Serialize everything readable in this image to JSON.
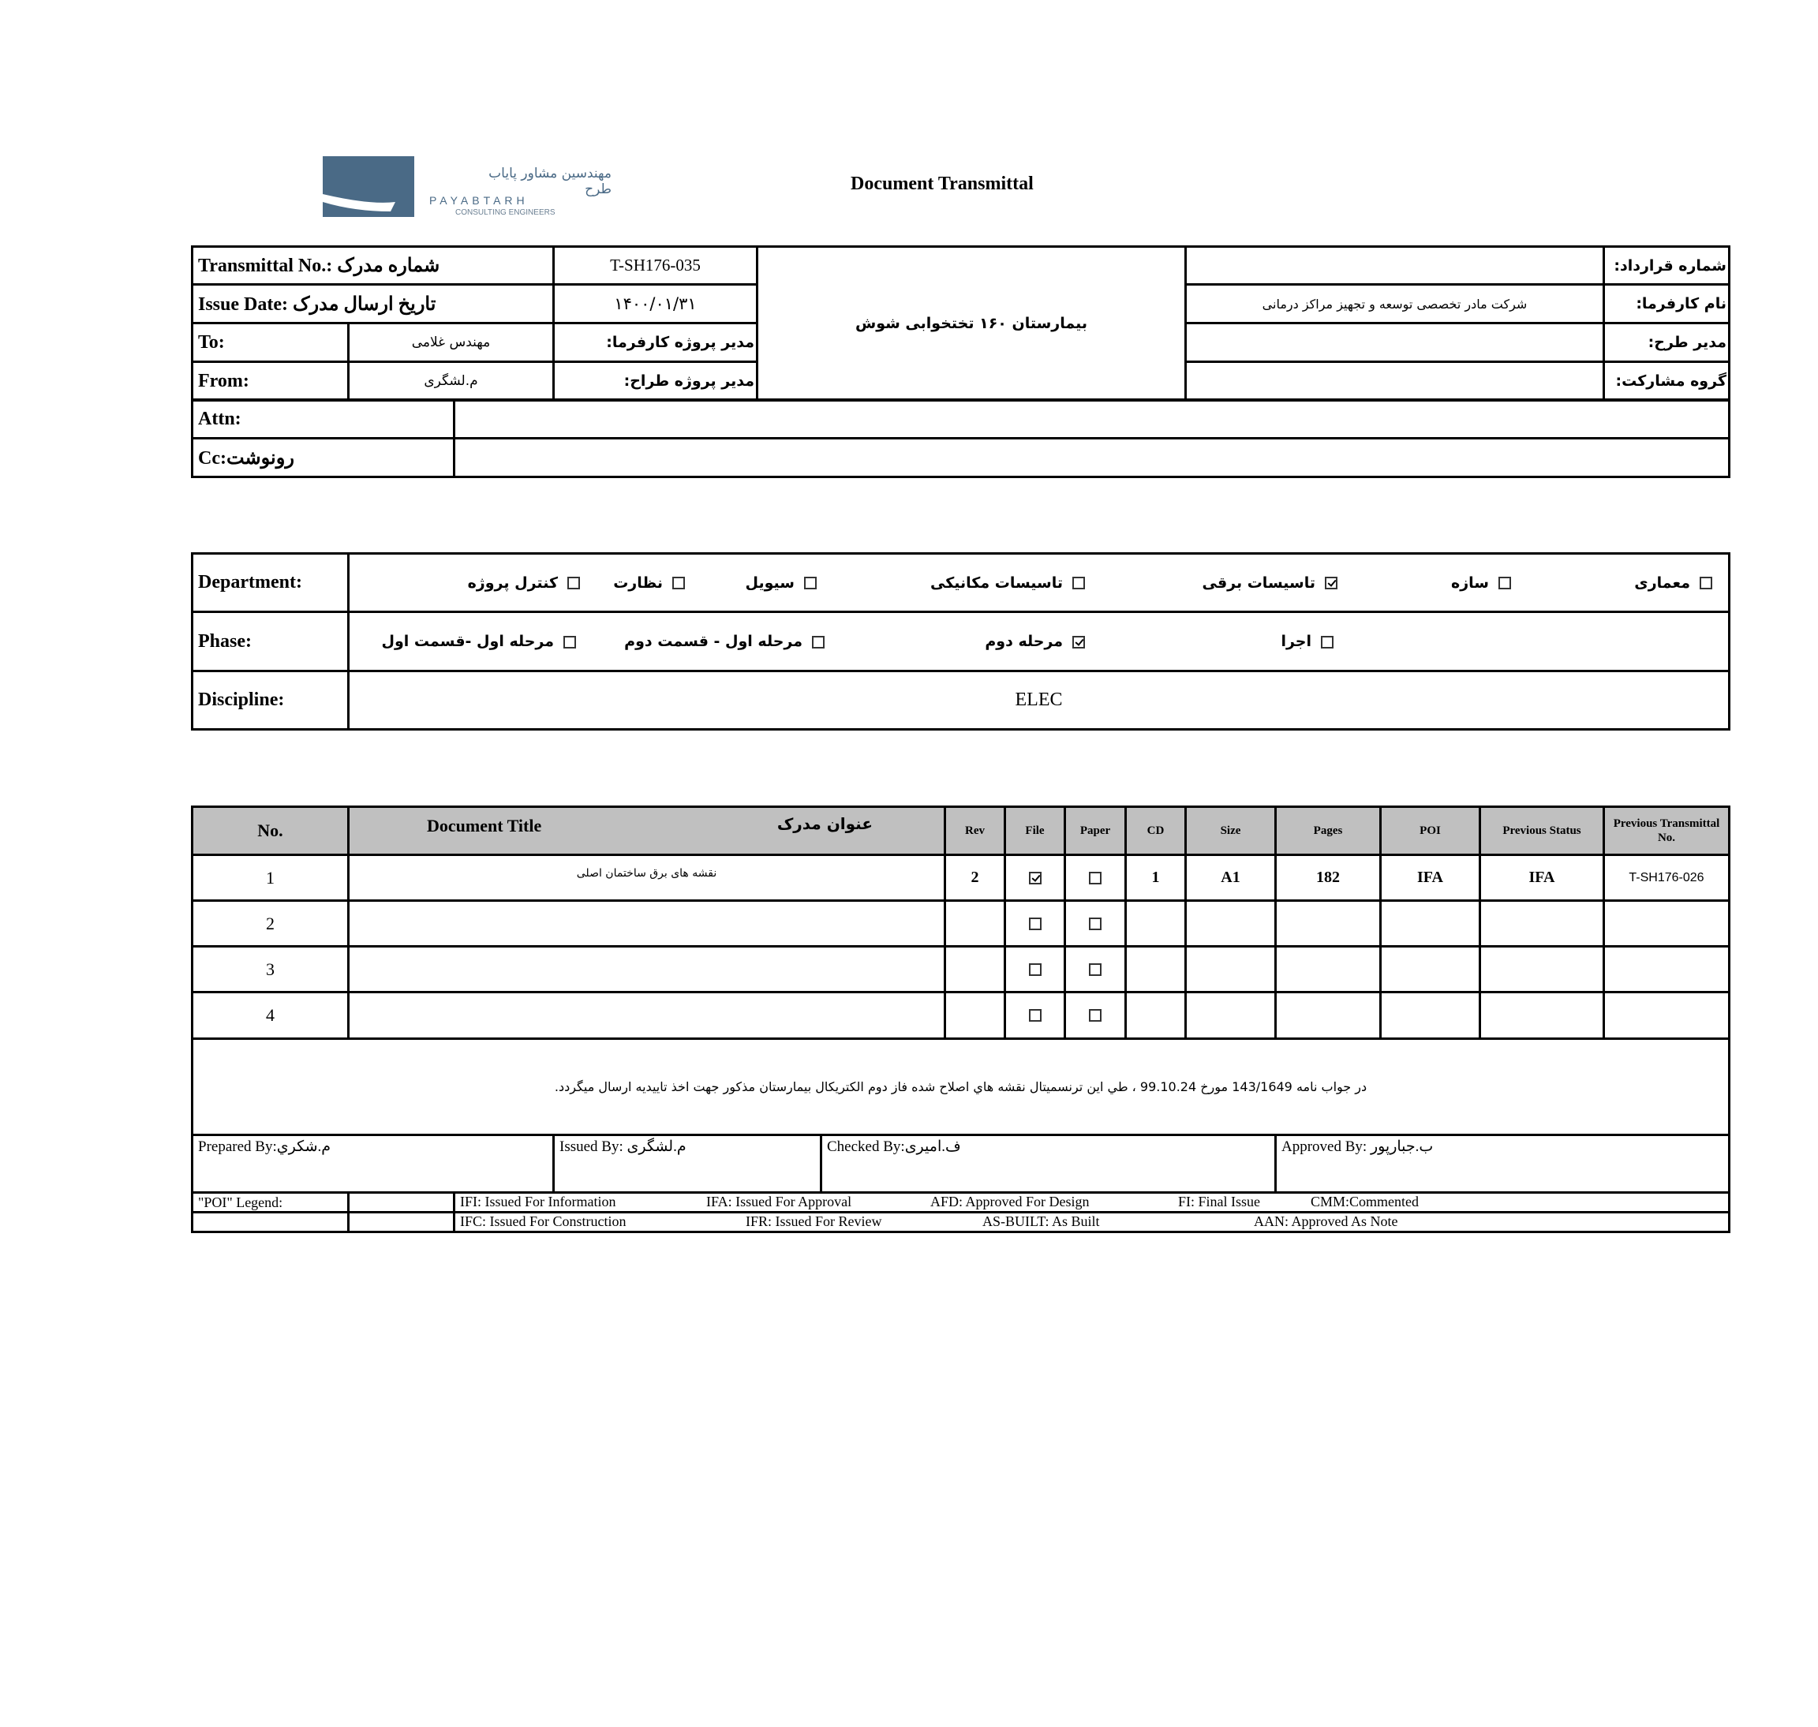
{
  "header": {
    "logo": {
      "name_fa": "مهندسین مشاور پایاب طرح",
      "name_en": "PAYABTARH",
      "tagline": "CONSULTING ENGINEERS",
      "color": "#4a6a86"
    },
    "title": "Document Transmittal"
  },
  "info": {
    "transmittal_no_label": "Transmittal No.: شماره مدرک",
    "transmittal_no": "T-SH176-035",
    "issue_date_label": "Issue Date: تاریخ ارسال مدرک",
    "issue_date": "۱۴۰۰/۰۱/۳۱",
    "to_label": "To:",
    "to_value": "مهندس غلامی",
    "from_label": "From:",
    "from_value": "م.لشگری",
    "client_pm_label": "مدیر پروژه کارفرما:",
    "designer_pm_label": "مدیر پروژه طراح:",
    "project_name": "بیمارستان ۱۶۰ تختخوابی شوش",
    "contract_no_label": "شماره قرارداد:",
    "contract_no": "",
    "client_label": "نام کارفرما:",
    "client_value": "شرکت مادر تخصصی توسعه و تجهیز مراکز درمانی",
    "project_manager_label": "مدیر طرح:",
    "project_manager": "",
    "partnership_label": "گروه مشارکت:",
    "partnership": "",
    "attn_label": "Attn:",
    "attn_value": "",
    "cc_label": "Cc:رونوشت",
    "cc_value": ""
  },
  "classification": {
    "department_label": "Department:",
    "departments": [
      {
        "label": "معماری",
        "checked": false
      },
      {
        "label": "سازه",
        "checked": false
      },
      {
        "label": "تاسیسات برقی",
        "checked": true
      },
      {
        "label": "تاسیسات مکانیکی",
        "checked": false
      },
      {
        "label": "سیویل",
        "checked": false
      },
      {
        "label": "نظارت",
        "checked": false
      },
      {
        "label": "کنترل پروژه",
        "checked": false
      }
    ],
    "phase_label": "Phase:",
    "phases": [
      {
        "label": "اجرا",
        "checked": false
      },
      {
        "label": "مرحله دوم",
        "checked": true
      },
      {
        "label": "مرحله اول - قسمت دوم",
        "checked": false
      },
      {
        "label": "مرحله اول -قسمت اول",
        "checked": false
      }
    ],
    "discipline_label": "Discipline:",
    "discipline": "ELEC"
  },
  "documents": {
    "columns": {
      "no": "No.",
      "title_en": "Document Title",
      "title_fa": "عنوان مدرک",
      "rev": "Rev",
      "file": "File",
      "paper": "Paper",
      "cd": "CD",
      "size": "Size",
      "pages": "Pages",
      "poi": "POI",
      "prev_status": "Previous Status",
      "prev_transmittal": "Previous Transmittal No."
    },
    "rows": [
      {
        "no": "1",
        "title": "نقشه های برق ساختمان اصلی",
        "rev": "2",
        "file": true,
        "paper": false,
        "cd": "1",
        "size": "A1",
        "pages": "182",
        "poi": "IFA",
        "prev_status": "IFA",
        "prev_transmittal": "T-SH176-026"
      },
      {
        "no": "2",
        "title": "",
        "rev": "",
        "file": false,
        "paper": false,
        "cd": "",
        "size": "",
        "pages": "",
        "poi": "",
        "prev_status": "",
        "prev_transmittal": ""
      },
      {
        "no": "3",
        "title": "",
        "rev": "",
        "file": false,
        "paper": false,
        "cd": "",
        "size": "",
        "pages": "",
        "poi": "",
        "prev_status": "",
        "prev_transmittal": ""
      },
      {
        "no": "4",
        "title": "",
        "rev": "",
        "file": false,
        "paper": false,
        "cd": "",
        "size": "",
        "pages": "",
        "poi": "",
        "prev_status": "",
        "prev_transmittal": ""
      }
    ],
    "note": "در جواب نامه 143/1649 مورخ 99.10.24 ، طي اين ترنسميتال نقشه هاي اصلاح شده فاز دوم الكتريكال بيمارستان مذكور جهت اخذ تاييديه ارسال ميگردد."
  },
  "signatures": {
    "prepared": "Prepared By:م.شکري",
    "issued": "Issued By: م.لشگری",
    "checked": "Checked By:ف.امیری",
    "approved": "Approved By: ب.جبارپور"
  },
  "legend": {
    "label": "\"POI\" Legend:",
    "line1": [
      "IFI:  Issued For Information",
      "IFA: Issued For Approval",
      "AFD: Approved For Design",
      "FI: Final Issue",
      "CMM:Commented"
    ],
    "line2": [
      "IFC: Issued For Construction",
      "IFR: Issued For Review",
      "AS-BUILT: As Built",
      "AAN: Approved As Note"
    ]
  }
}
